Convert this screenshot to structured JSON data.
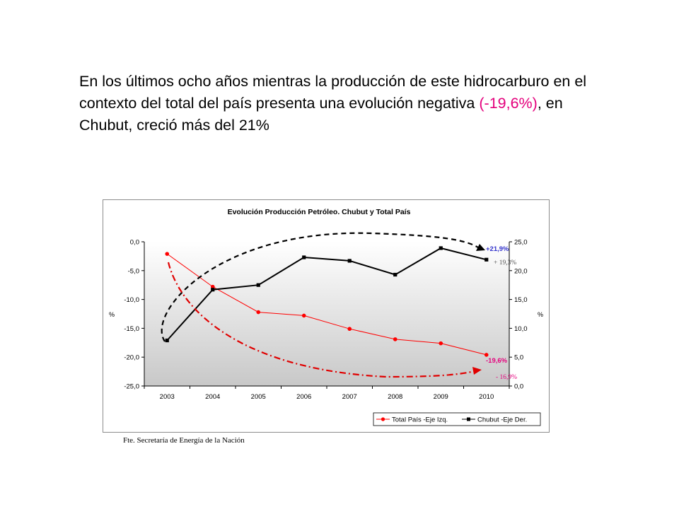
{
  "headline": {
    "part1": "En los últimos ocho años mientras la producción de este hidrocarburo en el contexto del total del país presenta una evolución negativa ",
    "highlight": "(-19,6%)",
    "part2": ", en Chubut, creció más del 21%"
  },
  "source": "Fte. Secretaría de Energía de la Nación",
  "colors": {
    "accent": "#e4007c",
    "total_pais": "#ff0000",
    "chubut": "#000000",
    "annotation_blue": "#3333cc"
  },
  "chart_data": {
    "type": "line",
    "title": "Evolución Producción Petróleo. Chubut y Total País",
    "x": [
      "2003",
      "2004",
      "2005",
      "2006",
      "2007",
      "2008",
      "2009",
      "2010"
    ],
    "ylabel_left": "%",
    "ylabel_right": "%",
    "ylim_left": [
      -25,
      0
    ],
    "ylim_right": [
      0,
      25
    ],
    "yticks_left": [
      "0,0",
      "-5,0",
      "-10,0",
      "-15,0",
      "-20,0",
      "-25,0"
    ],
    "yticks_right": [
      "25,0",
      "20,0",
      "15,0",
      "10,0",
      "5,0",
      "0,0"
    ],
    "series": [
      {
        "name": "Total País -Eje Izq.",
        "axis": "left",
        "color": "#ff0000",
        "marker": "circle",
        "values": [
          -2.1,
          -7.8,
          -12.2,
          -12.8,
          -15.1,
          -16.9,
          -17.6,
          -19.6
        ]
      },
      {
        "name": "Chubut -Eje Der.",
        "axis": "right",
        "color": "#000000",
        "marker": "square",
        "values": [
          7.9,
          16.7,
          17.5,
          22.3,
          21.7,
          19.3,
          23.9,
          21.9
        ]
      }
    ],
    "annotations": [
      {
        "text": "+21,9%",
        "color": "#3333cc"
      },
      {
        "text": "+ 19,3%",
        "color": "#555555"
      },
      {
        "text": "-19,6%",
        "color": "#e4007c"
      },
      {
        "text": "- 16,9%",
        "color": "#e4007c"
      }
    ],
    "legend_position": "bottom-right",
    "grid": false
  }
}
